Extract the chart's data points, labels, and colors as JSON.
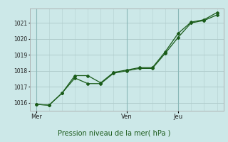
{
  "title": "",
  "xlabel": "Pression niveau de la mer( hPa )",
  "bg_color": "#cce8e8",
  "grid_color_h": "#b0cccc",
  "grid_color_v": "#b8d4d4",
  "line_color": "#1a5c1a",
  "line1_x": [
    0,
    1,
    2,
    3,
    4,
    5,
    6,
    7,
    8,
    9,
    10,
    11,
    12,
    13,
    14
  ],
  "line1_y": [
    1015.9,
    1015.85,
    1016.6,
    1017.55,
    1017.2,
    1017.2,
    1017.85,
    1018.0,
    1018.15,
    1018.15,
    1019.1,
    1020.1,
    1021.0,
    1021.15,
    1021.5
  ],
  "line2_x": [
    0,
    1,
    2,
    3,
    4,
    5,
    6,
    7,
    8,
    9,
    10,
    11,
    12,
    13,
    14
  ],
  "line2_y": [
    1015.9,
    1015.85,
    1016.6,
    1017.7,
    1017.7,
    1017.25,
    1017.9,
    1018.05,
    1018.2,
    1018.2,
    1019.2,
    1020.35,
    1021.05,
    1021.2,
    1021.65
  ],
  "xtick_positions": [
    0,
    7,
    11
  ],
  "xtick_labels": [
    "Mer",
    "Ven",
    "Jeu"
  ],
  "vline_positions": [
    0,
    1,
    2,
    3,
    4,
    5,
    6,
    7,
    8,
    9,
    10,
    11,
    12,
    13,
    14
  ],
  "vline_major": [
    0,
    7,
    11
  ],
  "ylim": [
    1015.5,
    1021.9
  ],
  "yticks": [
    1016,
    1017,
    1018,
    1019,
    1020,
    1021
  ],
  "xlim": [
    -0.5,
    14.5
  ]
}
